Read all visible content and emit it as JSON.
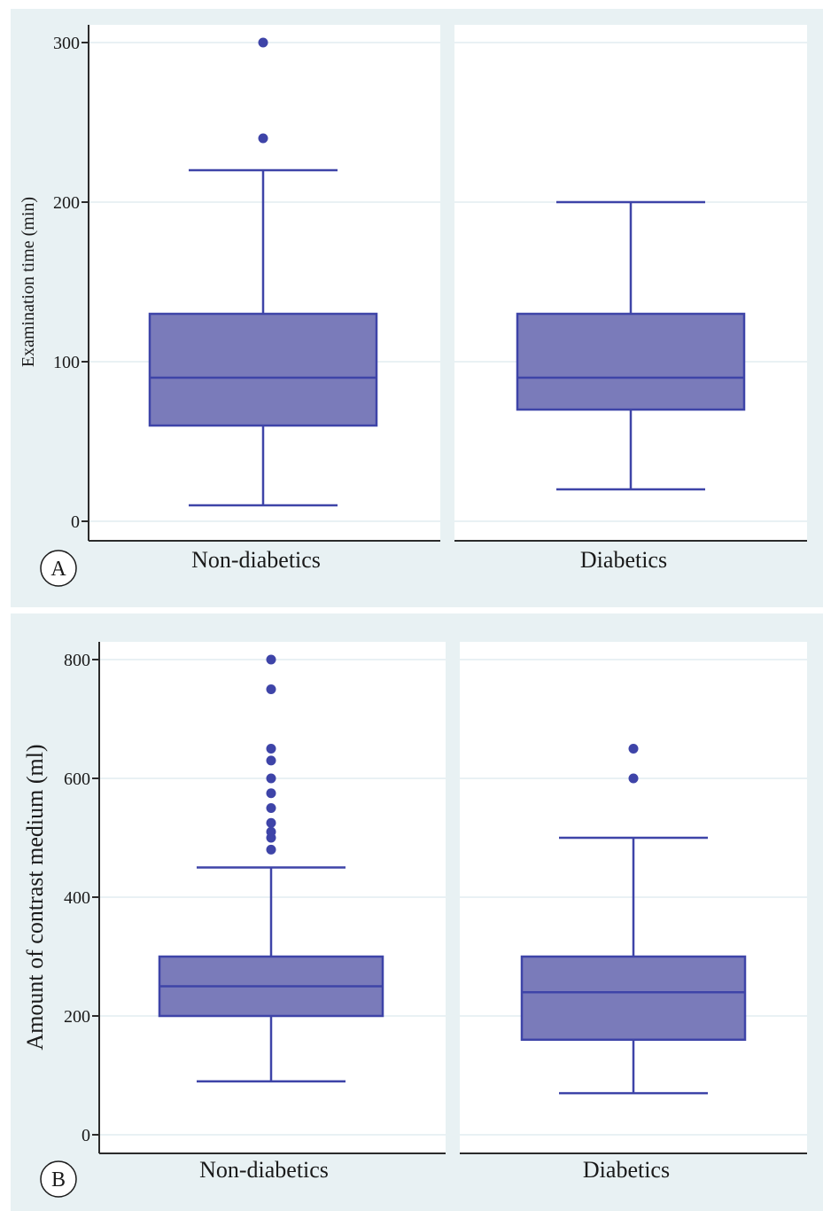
{
  "figure": {
    "background_color": "#e8f1f3",
    "plot_bg": "#ffffff",
    "box_fill": "#7a7bba",
    "box_stroke": "#3e44a8",
    "grid_color": "#e9f1f4"
  },
  "chart_data": [
    {
      "type": "box",
      "panel_label": "A",
      "ylabel": "Examination time (min)",
      "xlabel": "",
      "ylim": [
        0,
        300
      ],
      "yticks": [
        0,
        100,
        200,
        300
      ],
      "grid": true,
      "categories": [
        "Non-diabetics",
        "Diabetics"
      ],
      "boxes": [
        {
          "category": "Non-diabetics",
          "whisker_low": 10,
          "q1": 60,
          "median": 90,
          "q3": 130,
          "whisker_high": 220,
          "outliers": [
            240,
            300
          ]
        },
        {
          "category": "Diabetics",
          "whisker_low": 20,
          "q1": 70,
          "median": 90,
          "q3": 130,
          "whisker_high": 200,
          "outliers": []
        }
      ]
    },
    {
      "type": "box",
      "panel_label": "B",
      "ylabel": "Amount of contrast medium (ml)",
      "xlabel": "",
      "ylim": [
        0,
        800
      ],
      "yticks": [
        0,
        200,
        400,
        600,
        800
      ],
      "grid": true,
      "categories": [
        "Non-diabetics",
        "Diabetics"
      ],
      "boxes": [
        {
          "category": "Non-diabetics",
          "whisker_low": 90,
          "q1": 200,
          "median": 250,
          "q3": 300,
          "whisker_high": 450,
          "outliers": [
            480,
            500,
            510,
            525,
            550,
            575,
            600,
            630,
            650,
            750,
            800
          ]
        },
        {
          "category": "Diabetics",
          "whisker_low": 70,
          "q1": 160,
          "median": 240,
          "q3": 300,
          "whisker_high": 500,
          "outliers": [
            600,
            650
          ]
        }
      ]
    }
  ]
}
